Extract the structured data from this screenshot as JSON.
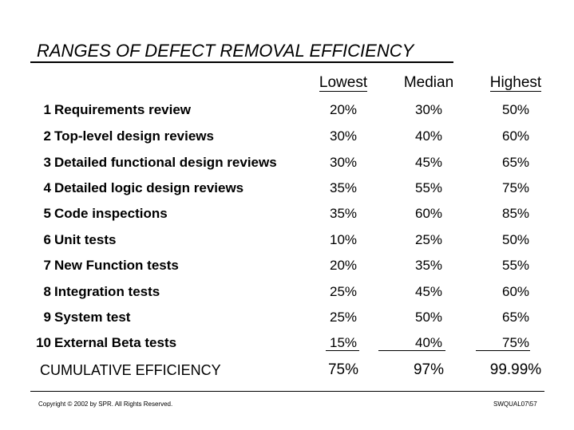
{
  "title": "RANGES OF DEFECT REMOVAL EFFICIENCY",
  "columns": {
    "lowest": "Lowest",
    "median": "Median",
    "highest": "Highest"
  },
  "rows": [
    {
      "num": "1",
      "label": "Requirements review",
      "lowest": "20%",
      "median": "30%",
      "highest": "50%"
    },
    {
      "num": "2",
      "label": "Top-level design reviews",
      "lowest": "30%",
      "median": "40%",
      "highest": "60%"
    },
    {
      "num": "3",
      "label": "Detailed functional design reviews",
      "lowest": "30%",
      "median": "45%",
      "highest": "65%"
    },
    {
      "num": "4",
      "label": "Detailed logic design reviews",
      "lowest": "35%",
      "median": "55%",
      "highest": "75%"
    },
    {
      "num": "5",
      "label": "Code inspections",
      "lowest": "35%",
      "median": "60%",
      "highest": "85%"
    },
    {
      "num": "6",
      "label": "Unit tests",
      "lowest": "10%",
      "median": "25%",
      "highest": "50%"
    },
    {
      "num": "7",
      "label": "New Function tests",
      "lowest": "20%",
      "median": "35%",
      "highest": "55%"
    },
    {
      "num": "8",
      "label": "Integration tests",
      "lowest": "25%",
      "median": "45%",
      "highest": "60%"
    },
    {
      "num": "9",
      "label": "System test",
      "lowest": "25%",
      "median": "50%",
      "highest": "65%"
    },
    {
      "num": "10",
      "label": "External Beta tests",
      "lowest": "15%",
      "median": "40%",
      "highest": "75%"
    }
  ],
  "cumulative": {
    "label": "CUMULATIVE EFFICIENCY",
    "lowest": "75%",
    "median": "97%",
    "highest": "99.99%"
  },
  "footer": {
    "copyright": "Copyright © 2002 by SPR.  All Rights Reserved.",
    "slide_id": "SWQUAL07\\57"
  }
}
